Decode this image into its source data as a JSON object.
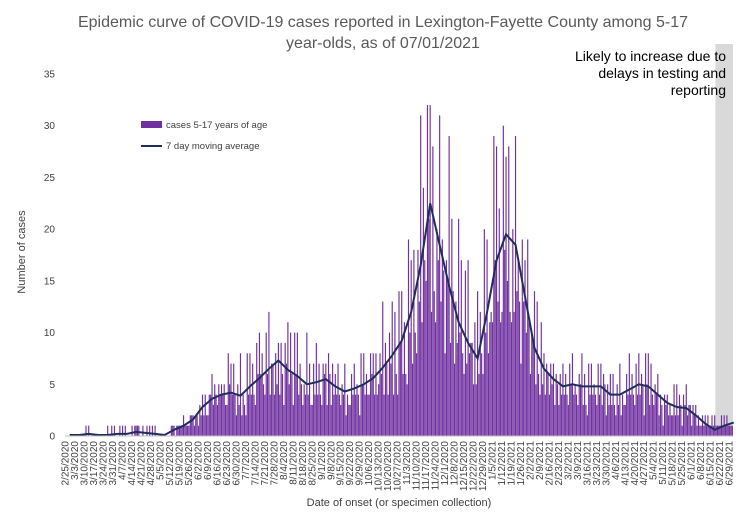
{
  "chart_data": {
    "type": "bar",
    "title_line1": "Epidemic curve of COVID-19 cases reported in Lexington-Fayette County among 5-17",
    "title_line2": "year-olds, as of 07/01/2021",
    "xlabel": "Date of onset (or specimen collection)",
    "ylabel": "Number of cases",
    "ylim": [
      0,
      35
    ],
    "yticks": [
      0,
      5,
      10,
      15,
      20,
      25,
      30,
      35
    ],
    "grid": false,
    "legend_position": "top-left",
    "colors": {
      "bars": "#7030a0",
      "line": "#1f2d5a",
      "shade": "#d9d9d9"
    },
    "annotation": {
      "lines": [
        "Likely to increase due to",
        "delays in testing and",
        "reporting"
      ]
    },
    "x_start": "2020-02-25",
    "x_end": "2021-07-01",
    "shade_start": "2021-06-19",
    "x_tick_labels": [
      "2/25/2020",
      "3/3/2020",
      "3/10/2020",
      "3/17/2020",
      "3/24/2020",
      "3/31/2020",
      "4/7/2020",
      "4/14/2020",
      "4/21/2020",
      "4/28/2020",
      "5/5/2020",
      "5/12/2020",
      "5/19/2020",
      "5/26/2020",
      "6/2/2020",
      "6/9/2020",
      "6/16/2020",
      "6/23/2020",
      "6/30/2020",
      "7/7/2020",
      "7/14/2020",
      "7/21/2020",
      "7/28/2020",
      "8/4/2020",
      "8/11/2020",
      "8/18/2020",
      "8/25/2020",
      "9/1/2020",
      "9/8/2020",
      "9/15/2020",
      "9/22/2020",
      "9/29/2020",
      "10/6/2020",
      "10/13/2020",
      "10/20/2020",
      "10/27/2020",
      "11/3/2020",
      "11/10/2020",
      "11/17/2020",
      "11/24/2020",
      "12/1/2020",
      "12/8/2020",
      "12/15/2020",
      "12/22/2020",
      "12/29/2020",
      "1/5/2021",
      "1/12/2021",
      "1/19/2021",
      "1/26/2021",
      "2/2/2021",
      "2/9/2021",
      "2/16/2021",
      "2/23/2021",
      "3/2/2021",
      "3/9/2021",
      "3/16/2021",
      "3/23/2021",
      "3/30/2021",
      "4/6/2021",
      "4/13/2021",
      "4/20/2021",
      "4/27/2021",
      "5/4/2021",
      "5/11/2021",
      "5/18/2021",
      "5/25/2021",
      "6/1/2021",
      "6/8/2021",
      "6/15/2021",
      "6/22/2021",
      "6/29/2021"
    ],
    "series": [
      {
        "name": "cases 5-17 years of age",
        "kind": "bar",
        "weekly_mean_values": [
          0.1,
          0.1,
          0.3,
          0.1,
          0.1,
          0.2,
          0.2,
          0.5,
          0.4,
          0.2,
          0.1,
          0.8,
          1.2,
          1.8,
          3,
          4,
          4.5,
          5,
          4,
          5.5,
          6.5,
          7,
          7.5,
          6.5,
          6,
          5,
          5.5,
          6,
          5,
          4.5,
          5,
          5.5,
          6,
          7,
          8,
          9,
          12,
          17,
          22,
          19,
          15,
          12,
          10,
          8,
          12,
          17,
          19,
          17,
          14,
          9,
          7,
          5.5,
          5,
          5,
          5,
          5,
          5,
          4,
          4,
          4.5,
          5,
          5,
          4,
          3,
          3,
          3,
          2,
          1.5,
          1,
          1.5,
          1
        ]
      },
      {
        "name": "7 day moving average",
        "kind": "line",
        "weekly_values": [
          0.1,
          0.1,
          0.2,
          0.1,
          0.1,
          0.2,
          0.2,
          0.4,
          0.3,
          0.2,
          0.1,
          0.6,
          1,
          1.6,
          2.8,
          3.6,
          4,
          4.2,
          3.9,
          4.8,
          5.6,
          6.5,
          7.3,
          6.4,
          5.8,
          5,
          5.2,
          5.5,
          4.8,
          4.3,
          4.6,
          5,
          5.6,
          6.6,
          7.8,
          9.2,
          12,
          16.5,
          22.5,
          18.5,
          14.5,
          11,
          9,
          7.5,
          12,
          17,
          19.5,
          18.5,
          13.5,
          8.5,
          6.5,
          5.5,
          4.8,
          5,
          4.8,
          4.8,
          4.8,
          4,
          4,
          4.5,
          5,
          4.8,
          4,
          3.2,
          2.8,
          2.7,
          2,
          1.2,
          0.6,
          1,
          1.3
        ]
      }
    ]
  }
}
